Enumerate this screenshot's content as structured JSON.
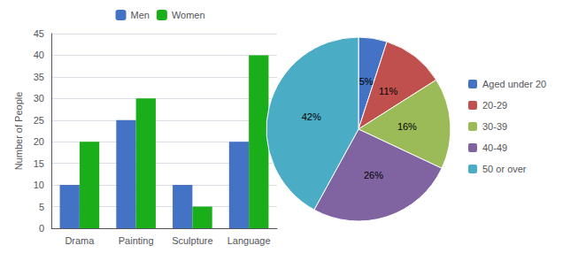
{
  "chart_data": [
    {
      "type": "bar",
      "categories": [
        "Drama",
        "Painting",
        "Sculpture",
        "Language"
      ],
      "series": [
        {
          "name": "Men",
          "color": "#4472C4",
          "values": [
            10,
            25,
            10,
            20
          ]
        },
        {
          "name": "Women",
          "color": "#1AAF1A",
          "values": [
            20,
            30,
            5,
            40
          ]
        }
      ],
      "ylabel": "Number of People",
      "ylim": [
        0,
        45
      ],
      "yticks": [
        0,
        5,
        10,
        15,
        20,
        25,
        30,
        35,
        40,
        45
      ],
      "grid": true,
      "legend": "top"
    },
    {
      "type": "pie",
      "categories": [
        "Aged under 20",
        "20-29",
        "30-39",
        "40-49",
        "50 or over"
      ],
      "values": [
        5,
        11,
        16,
        26,
        42
      ],
      "value_labels": [
        "5%",
        "11%",
        "16%",
        "26%",
        "42%"
      ],
      "colors": [
        "#4472C4",
        "#C0504D",
        "#9BBB59",
        "#8064A2",
        "#4BACC6"
      ],
      "data_labels": true,
      "legend": "right"
    }
  ]
}
